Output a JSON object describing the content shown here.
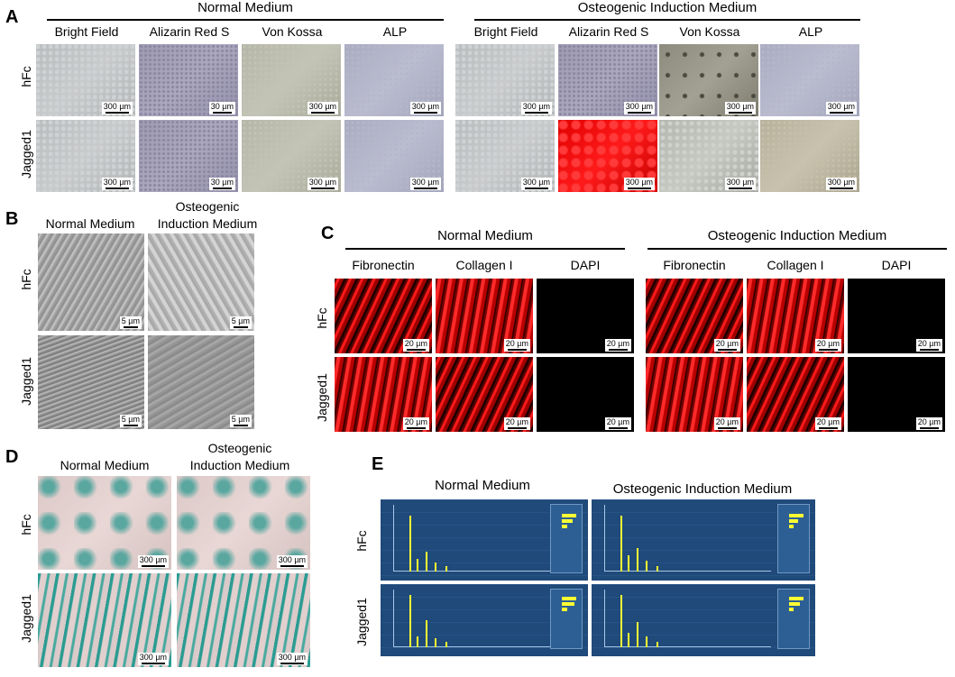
{
  "panels": {
    "A": {
      "letter": "A",
      "normal_medium": "Normal Medium",
      "osteo_medium": "Osteogenic Induction Medium",
      "columns": [
        "Bright Field",
        "Alizarin Red S",
        "Von Kossa",
        "ALP"
      ],
      "rows": [
        "hFc",
        "Jagged1"
      ],
      "scalebars_normal": [
        [
          "300 µm",
          "30 µm",
          "300 µm",
          "300 µm"
        ],
        [
          "300 µm",
          "30 µm",
          "300 µm",
          "300 µm"
        ]
      ],
      "scalebars_osteo": [
        [
          "300 µm",
          "300 µm",
          "300 µm",
          "300 µm"
        ],
        [
          "300 µm",
          "300 µm",
          "300 µm",
          "300 µm"
        ]
      ]
    },
    "B": {
      "letter": "B",
      "col1": "Normal Medium",
      "col2_line1": "Osteogenic",
      "col2_line2": "Induction Medium",
      "rows": [
        "hFc",
        "Jagged1"
      ],
      "scalebar": "5 µm"
    },
    "C": {
      "letter": "C",
      "normal_medium": "Normal Medium",
      "osteo_medium": "Osteogenic Induction Medium",
      "columns": [
        "Fibronectin",
        "Collagen I",
        "DAPI"
      ],
      "rows": [
        "hFc",
        "Jagged1"
      ],
      "scalebar": "20 µm"
    },
    "D": {
      "letter": "D",
      "col1": "Normal Medium",
      "col2_line1": "Osteogenic",
      "col2_line2": "Induction Medium",
      "rows": [
        "hFc",
        "Jagged1"
      ],
      "scalebar": "300 µm"
    },
    "E": {
      "letter": "E",
      "col1": "Normal Medium",
      "col2": "Osteogenic Induction Medium",
      "rows": [
        "hFc",
        "Jagged1"
      ]
    }
  }
}
